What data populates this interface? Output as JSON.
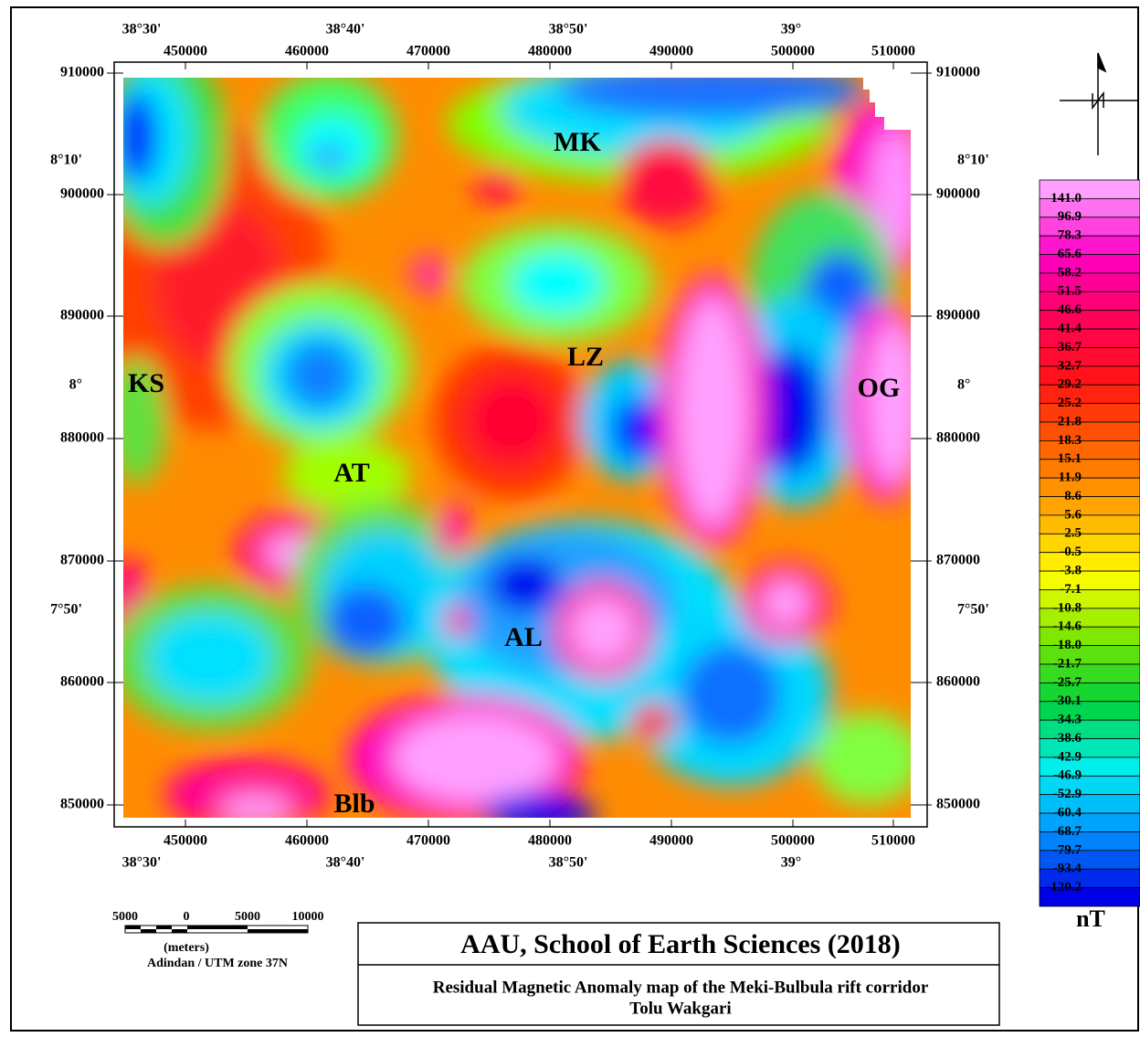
{
  "map": {
    "top_longitude_labels": [
      "38°30'",
      "38°40'",
      "38°50'",
      "39°"
    ],
    "top_easting_labels": [
      "450000",
      "460000",
      "470000",
      "480000",
      "490000",
      "500000",
      "510000"
    ],
    "bottom_easting_labels": [
      "450000",
      "460000",
      "470000",
      "480000",
      "490000",
      "500000",
      "510000"
    ],
    "bottom_longitude_labels": [
      "38°30'",
      "38°40'",
      "38°50'",
      "39°"
    ],
    "left_northing_labels": [
      "910000",
      "900000",
      "890000",
      "880000",
      "870000",
      "860000",
      "850000"
    ],
    "left_latitude_labels": [
      "8°10'",
      "8°",
      "7°50'"
    ],
    "right_northing_labels": [
      "910000",
      "900000",
      "890000",
      "880000",
      "870000",
      "860000",
      "850000"
    ],
    "right_latitude_labels": [
      "8°10'",
      "8°",
      "7°50'"
    ],
    "place_labels": [
      "MK",
      "LZ",
      "KS",
      "OG",
      "AT",
      "AL",
      "Blb"
    ]
  },
  "legend": {
    "values": [
      "141.0",
      "96.9",
      "78.3",
      "65.6",
      "58.2",
      "51.5",
      "46.6",
      "41.4",
      "36.7",
      "32.7",
      "29.2",
      "25.2",
      "21.8",
      "18.3",
      "15.1",
      "11.9",
      "8.6",
      "5.6",
      "2.5",
      "-0.5",
      "-3.8",
      "-7.1",
      "-10.8",
      "-14.6",
      "-18.0",
      "-21.7",
      "-25.7",
      "-30.1",
      "-34.3",
      "-38.6",
      "-42.9",
      "-46.9",
      "-52.9",
      "-60.4",
      "-68.7",
      "-79.7",
      "-93.4",
      "-120.2"
    ],
    "unit": "nT"
  },
  "scale_bar": {
    "labels": [
      "5000",
      "0",
      "5000",
      "10000"
    ],
    "unit_label": "(meters)",
    "projection": "Adindan / UTM zone 37N"
  },
  "title_box": {
    "title": "AAU, School of Earth Sciences (2018)",
    "subtitle": "Residual Magnetic Anomaly map of the Meki-Bulbula rift corridor",
    "author": "Tolu Wakgari"
  }
}
